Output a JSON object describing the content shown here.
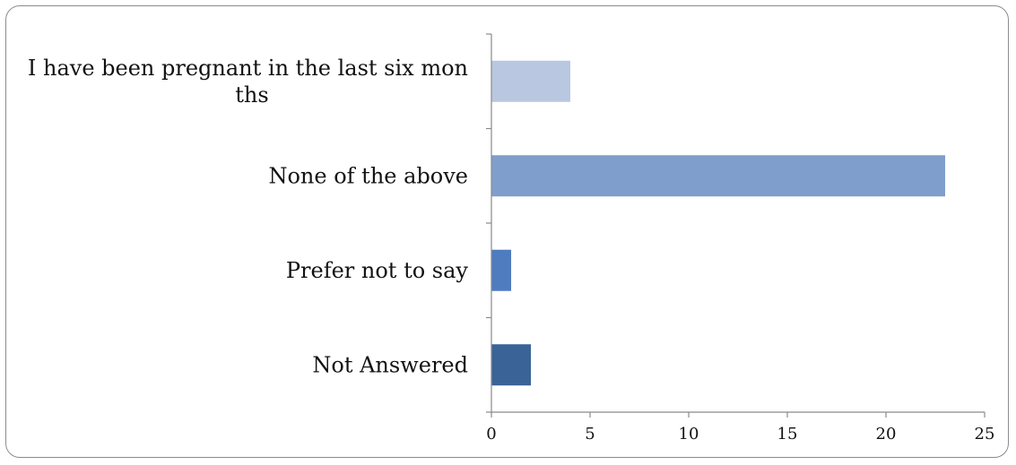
{
  "chart_data": {
    "type": "bar",
    "orientation": "horizontal",
    "categories": [
      "I have been pregnant in the last six months",
      "None of the above",
      "Prefer not to say",
      "Not Answered"
    ],
    "category_label_lines": [
      [
        "I have been pregnant in the last six mon",
        "ths"
      ],
      [
        "None of the above"
      ],
      [
        "Prefer not to say"
      ],
      [
        "Not Answered"
      ]
    ],
    "values": [
      4,
      23,
      1,
      2
    ],
    "bar_colors": [
      "#b9c7e0",
      "#7f9ecb",
      "#4f7cbf",
      "#3a6397"
    ],
    "xlim": [
      0,
      25
    ],
    "x_ticks": [
      "0",
      "5",
      "10",
      "15",
      "20",
      "25"
    ],
    "title": "",
    "xlabel": "",
    "ylabel": "",
    "grid": false,
    "legend": "none"
  }
}
